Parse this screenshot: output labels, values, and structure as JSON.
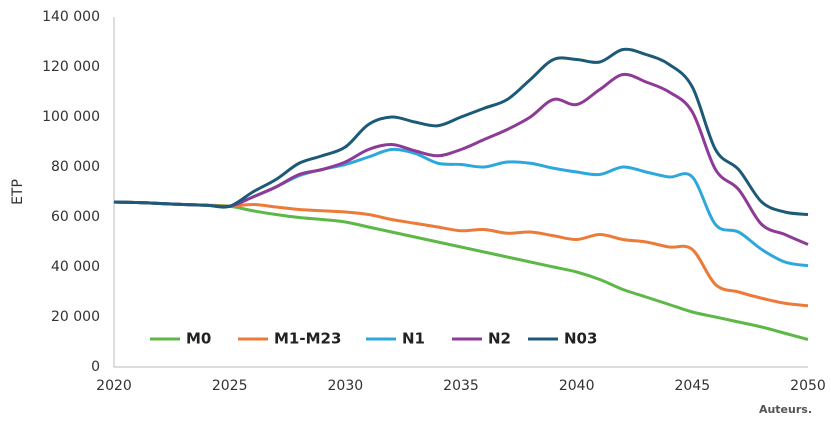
{
  "chart_data": {
    "type": "line",
    "y_label": "ETP",
    "source": "Auteurs.",
    "x": [
      2020,
      2021,
      2022,
      2023,
      2024,
      2025,
      2026,
      2027,
      2028,
      2029,
      2030,
      2031,
      2032,
      2033,
      2034,
      2035,
      2036,
      2037,
      2038,
      2039,
      2040,
      2041,
      2042,
      2043,
      2044,
      2045,
      2046,
      2047,
      2048,
      2049,
      2050
    ],
    "xlim": [
      2020,
      2050
    ],
    "xticks": [
      2020,
      2025,
      2030,
      2035,
      2040,
      2045,
      2050
    ],
    "ylim": [
      0,
      140000
    ],
    "yticks": [
      0,
      {
        "value": 20000,
        "label": "20 000"
      },
      {
        "value": 40000,
        "label": "40 000"
      },
      {
        "value": 60000,
        "label": "60 000"
      },
      {
        "value": 80000,
        "label": "80 000"
      },
      {
        "value": 100000,
        "label": "100 000"
      },
      {
        "value": 120000,
        "label": "120 000"
      },
      {
        "value": 140000,
        "label": "140 000"
      }
    ],
    "grid": false,
    "series": [
      {
        "name": "M0",
        "color": "#5db848",
        "values": [
          66000,
          65800,
          65400,
          65000,
          64700,
          64300,
          62500,
          61000,
          59800,
          59000,
          58000,
          56000,
          54000,
          52000,
          50000,
          48000,
          46000,
          44000,
          42000,
          40000,
          38000,
          35000,
          31000,
          28000,
          25000,
          22000,
          20000,
          18000,
          16000,
          13500,
          11000
        ]
      },
      {
        "name": "M1-M23",
        "color": "#ec7b3a",
        "values": [
          66000,
          65800,
          65400,
          65000,
          64700,
          64300,
          65000,
          64000,
          63000,
          62500,
          62000,
          61000,
          59000,
          57500,
          56000,
          54500,
          55000,
          53500,
          54000,
          52500,
          51000,
          53000,
          51000,
          50000,
          48000,
          47000,
          33000,
          30000,
          27500,
          25500,
          24500
        ]
      },
      {
        "name": "N1",
        "color": "#2ea8dc",
        "values": [
          66000,
          65800,
          65400,
          65000,
          64700,
          64300,
          68000,
          72000,
          76500,
          79000,
          81000,
          84000,
          87000,
          85500,
          81500,
          81000,
          80000,
          82000,
          81500,
          79500,
          78000,
          77000,
          80000,
          78000,
          76000,
          76000,
          57000,
          54000,
          47000,
          42000,
          40500
        ]
      },
      {
        "name": "N2",
        "color": "#8e3a97",
        "values": [
          66000,
          65800,
          65400,
          65000,
          64700,
          64300,
          68000,
          72000,
          77000,
          79000,
          82000,
          87000,
          89000,
          86500,
          84500,
          87000,
          91000,
          95000,
          100000,
          107000,
          105000,
          111000,
          117000,
          114000,
          110000,
          102000,
          79000,
          71000,
          57000,
          53000,
          49000
        ]
      },
      {
        "name": "N03",
        "color": "#1c5a78",
        "values": [
          66000,
          65800,
          65400,
          65000,
          64700,
          64300,
          70000,
          75000,
          81500,
          84500,
          88000,
          97000,
          100000,
          98000,
          96500,
          100000,
          103500,
          107000,
          115000,
          123000,
          123000,
          122000,
          127000,
          125000,
          121000,
          112000,
          87000,
          79000,
          66000,
          62000,
          61000
        ]
      }
    ]
  }
}
